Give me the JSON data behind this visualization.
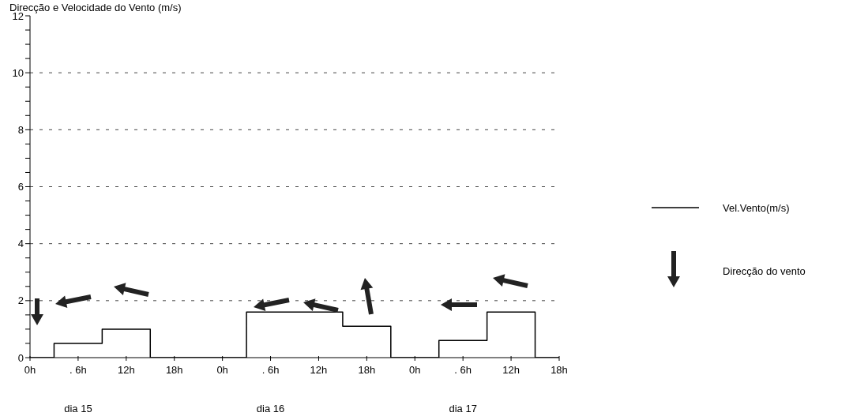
{
  "chart_data": {
    "type": "step",
    "title": "Direcção e Velocidade do Vento (m/s)",
    "categories": [
      "0h",
      null,
      ". 6h",
      null,
      "12h",
      null,
      "18h",
      null,
      "0h",
      null,
      ". 6h",
      null,
      "12h",
      null,
      "18h",
      null,
      "0h",
      null,
      ". 6h",
      null,
      "12h",
      null,
      "18h"
    ],
    "series": [
      {
        "name": "Vel.Vento(m/s)",
        "color": "#000000",
        "values": [
          0,
          0.5,
          0.5,
          1.0,
          1.0,
          0,
          0,
          0,
          0,
          1.6,
          1.6,
          1.6,
          1.6,
          1.1,
          1.1,
          0,
          0,
          0.6,
          0.6,
          1.6,
          1.6,
          0,
          0
        ]
      }
    ],
    "ylim": [
      0,
      12
    ],
    "yticks": [
      0,
      {
        "value": 0.5,
        "label": null
      },
      {
        "value": 1,
        "label": null
      },
      {
        "value": 1.5,
        "label": null
      },
      2,
      {
        "value": 2.5,
        "label": null
      },
      {
        "value": 3,
        "label": null
      },
      {
        "value": 3.5,
        "label": null
      },
      4,
      {
        "value": 4.5,
        "label": null
      },
      {
        "value": 5,
        "label": null
      },
      {
        "value": 5.5,
        "label": null
      },
      6,
      {
        "value": 6.5,
        "label": null
      },
      {
        "value": 7,
        "label": null
      },
      {
        "value": 7.5,
        "label": null
      },
      8,
      {
        "value": 8.5,
        "label": null
      },
      {
        "value": 9,
        "label": null
      },
      {
        "value": 9.5,
        "label": null
      },
      10,
      {
        "value": 10.5,
        "label": null
      },
      {
        "value": 11,
        "label": null
      },
      {
        "value": 11.5,
        "label": null
      },
      12
    ],
    "grid": "y",
    "line_style": "solid",
    "legend": "right",
    "annotations": [
      "dia 15",
      "dia 16",
      "dia 17",
      "Direcção do vento"
    ]
  }
}
